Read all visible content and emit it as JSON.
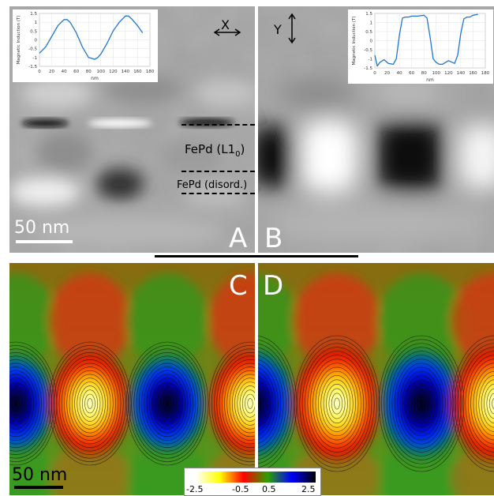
{
  "panels": {
    "a": {
      "letter": "A"
    },
    "b": {
      "letter": "B"
    },
    "c": {
      "letter": "C"
    },
    "d": {
      "letter": "D"
    }
  },
  "annotations": {
    "axis_x": "X",
    "axis_y": "Y",
    "layer_top": "FePd (L1",
    "layer_top_sub": "0",
    "layer_top_close": ")",
    "layer_bottom": "FePd (disord.)",
    "scalebar_top": "50 nm",
    "scalebar_bottom": "50 nm"
  },
  "colorbar": {
    "colors": [
      "#ffffff",
      "#ffff00",
      "#ff0000",
      "#2ea000",
      "#0000ff",
      "#000000"
    ],
    "ticks": [
      "-2.5",
      "-0.5",
      "0.5",
      "2.5"
    ]
  },
  "chart_data": [
    {
      "type": "line",
      "xlabel": "nm",
      "ylabel": "Magnetic Induction (T)",
      "xticks": [
        "0",
        "20",
        "40",
        "60",
        "80",
        "100",
        "120",
        "140",
        "160",
        "180"
      ],
      "yticks": [
        "1.5",
        "1",
        "0.5",
        "0",
        "-0.5",
        "-1",
        "-1.5"
      ],
      "xlim": [
        0,
        180
      ],
      "ylim": [
        -1.5,
        1.5
      ],
      "series": [
        {
          "color": "#1f77d0",
          "x": [
            0,
            10,
            20,
            30,
            40,
            45,
            50,
            60,
            70,
            80,
            90,
            95,
            100,
            110,
            120,
            130,
            140,
            145,
            150,
            160,
            168
          ],
          "y": [
            -0.75,
            -0.4,
            0.2,
            0.8,
            1.15,
            1.15,
            1.0,
            0.4,
            -0.4,
            -1.0,
            -1.1,
            -1.0,
            -0.8,
            -0.2,
            0.5,
            1.0,
            1.35,
            1.35,
            1.2,
            0.8,
            0.4
          ]
        }
      ]
    },
    {
      "type": "line",
      "xlabel": "nm",
      "ylabel": "Magnetic Induction (T)",
      "xticks": [
        "0",
        "20",
        "40",
        "60",
        "80",
        "100",
        "120",
        "140",
        "160",
        "180"
      ],
      "yticks": [
        "1.5",
        "1",
        "0.5",
        "0",
        "-0.5",
        "-1",
        "-1.5"
      ],
      "xlim": [
        0,
        180
      ],
      "ylim": [
        -1.5,
        1.5
      ],
      "series": [
        {
          "color": "#1f77d0",
          "x": [
            0,
            4,
            8,
            15,
            22,
            30,
            35,
            40,
            45,
            50,
            55,
            60,
            70,
            80,
            85,
            90,
            95,
            100,
            105,
            110,
            120,
            130,
            135,
            140,
            145,
            150,
            155,
            160,
            168
          ],
          "y": [
            -0.8,
            -1.4,
            -1.2,
            -1.05,
            -1.25,
            -1.3,
            -1.0,
            0.3,
            1.25,
            1.3,
            1.3,
            1.35,
            1.35,
            1.4,
            1.25,
            0.2,
            -1.0,
            -1.2,
            -1.3,
            -1.3,
            -1.1,
            -1.25,
            -0.8,
            0.4,
            1.2,
            1.3,
            1.3,
            1.4,
            1.45
          ]
        }
      ]
    }
  ]
}
